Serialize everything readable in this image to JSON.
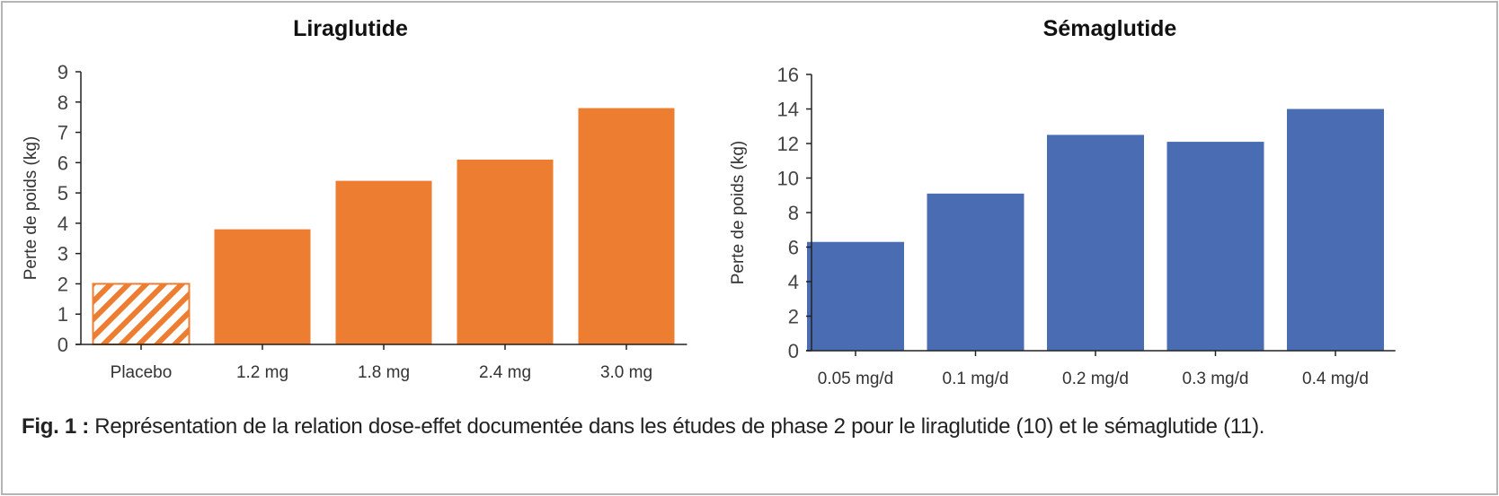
{
  "chart_data": [
    {
      "type": "bar",
      "title": "Liraglutide",
      "categories": [
        "Placebo",
        "1.2 mg",
        "1.8 mg",
        "2.4 mg",
        "3.0 mg"
      ],
      "values": [
        2.0,
        3.8,
        5.4,
        6.1,
        7.8
      ],
      "patterns": [
        "hatched",
        "solid",
        "solid",
        "solid",
        "solid"
      ],
      "xlabel": "",
      "ylabel": "Perte de poids (kg)",
      "ylim": [
        0,
        9
      ],
      "yticks": [
        0,
        1,
        2,
        3,
        4,
        5,
        6,
        7,
        8,
        9
      ],
      "color": "#ED7D31",
      "grid": false
    },
    {
      "type": "bar",
      "title": "Sémaglutide",
      "categories": [
        "0.05 mg/d",
        "0.1 mg/d",
        "0.2 mg/d",
        "0.3 mg/d",
        "0.4 mg/d"
      ],
      "values": [
        6.3,
        9.1,
        12.5,
        12.1,
        14.0
      ],
      "xlabel": "",
      "ylabel": "Perte de poids (kg)",
      "ylim": [
        0,
        16
      ],
      "yticks": [
        0,
        2,
        4,
        6,
        8,
        10,
        12,
        14,
        16
      ],
      "color": "#4A6CB3",
      "grid": false
    }
  ],
  "caption": {
    "label": "Fig. 1 :",
    "text": " Représentation de la relation dose-effet documentée dans les études de phase 2 pour le liraglutide (10) et le sémaglutide (11)."
  }
}
